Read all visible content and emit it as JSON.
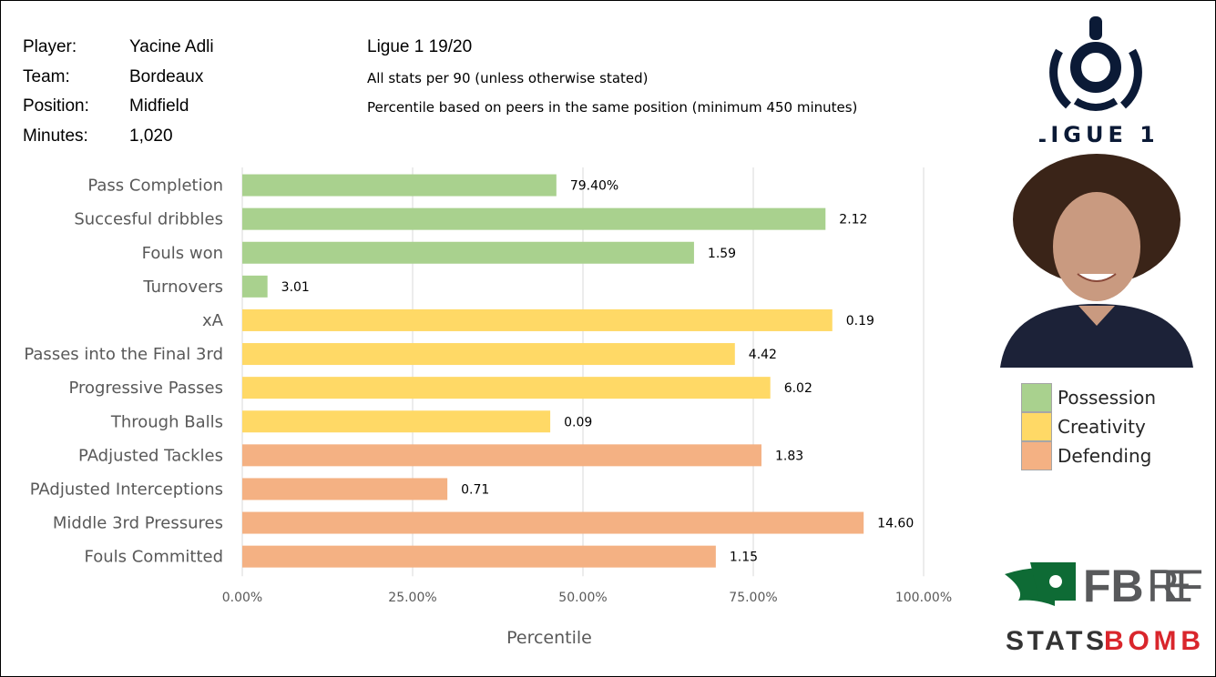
{
  "info": {
    "player_label": "Player:",
    "player": "Yacine Adli",
    "team_label": "Team:",
    "team": "Bordeaux",
    "position_label": "Position:",
    "position": "Midfield",
    "minutes_label": "Minutes:",
    "minutes": "1,020",
    "season": "Ligue 1 19/20",
    "note1": "All stats per 90 (unless otherwise stated)",
    "note2": "Percentile based on peers in the same position (minimum 450 minutes)"
  },
  "logos": {
    "league": "LIGUE 1",
    "fbref": "FBREF",
    "statsbomb": "STATSBOMB"
  },
  "colors": {
    "Possession": "#a9d18e",
    "Creativity": "#ffd966",
    "Defending": "#f4b183"
  },
  "chart_data": {
    "type": "bar",
    "orientation": "horizontal",
    "xlabel": "Percentile",
    "xlim": [
      0,
      100
    ],
    "xticks": [
      "0.00%",
      "25.00%",
      "50.00%",
      "75.00%",
      "100.00%"
    ],
    "grid": true,
    "legend": {
      "placement": "right",
      "entries": [
        "Possession",
        "Creativity",
        "Defending"
      ]
    },
    "categories": [
      "Pass Completion",
      "Succesful dribbles",
      "Fouls won",
      "Turnovers",
      "xA",
      "Passes into the Final 3rd",
      "Progressive Passes",
      "Through Balls",
      "PAdjusted Tackles",
      "PAdjusted Interceptions",
      "Middle 3rd Pressures",
      "Fouls Committed"
    ],
    "groups": [
      "Possession",
      "Possession",
      "Possession",
      "Possession",
      "Creativity",
      "Creativity",
      "Creativity",
      "Creativity",
      "Defending",
      "Defending",
      "Defending",
      "Defending"
    ],
    "values": [
      46.1,
      85.6,
      66.3,
      3.7,
      86.6,
      72.3,
      77.5,
      45.2,
      76.2,
      30.1,
      91.2,
      69.5
    ],
    "data_labels": [
      "79.40%",
      "2.12",
      "1.59",
      "3.01",
      "0.19",
      "4.42",
      "6.02",
      "0.09",
      "1.83",
      "0.71",
      "14.60",
      "1.15"
    ]
  }
}
